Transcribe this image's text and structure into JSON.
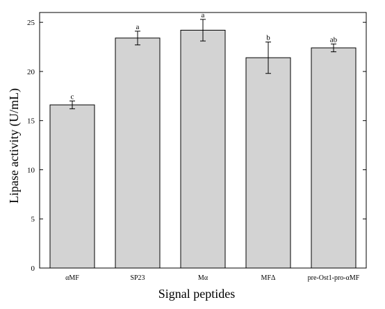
{
  "chart_data": {
    "type": "bar",
    "title": "",
    "xlabel": "Signal peptides",
    "ylabel": "Lipase activity (U/mL)",
    "ylim": [
      0,
      26
    ],
    "yticks": [
      0,
      5,
      10,
      15,
      20,
      25
    ],
    "grid": false,
    "categories": [
      "αMF",
      "SP23",
      "Mα",
      "MFΔ",
      "pre-Ost1-pro-αMF"
    ],
    "values": [
      16.6,
      23.4,
      24.2,
      21.4,
      22.4
    ],
    "errors": [
      0.4,
      0.7,
      1.1,
      1.6,
      0.4
    ],
    "significance": [
      "c",
      "a",
      "a",
      "b",
      "ab"
    ],
    "bar_color": "#d3d3d3",
    "edge_color": "#000000"
  }
}
